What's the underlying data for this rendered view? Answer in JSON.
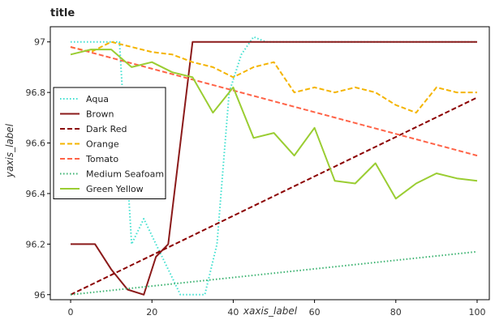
{
  "chart_data": {
    "type": "line",
    "title": "title",
    "xlabel": "xaxis_label",
    "ylabel": "yaxis_label",
    "xlim": [
      -5,
      103
    ],
    "ylim": [
      95.98,
      97.06
    ],
    "xticks": [
      0,
      20,
      40,
      60,
      80,
      100
    ],
    "xtick_labels": [
      "0",
      "20",
      "40",
      "60",
      "80",
      "100"
    ],
    "yticks": [
      96.0,
      96.2,
      96.4,
      96.6,
      96.8,
      97.0
    ],
    "ytick_labels": [
      "96",
      "96.2",
      "96.4",
      "96.6",
      "96.8",
      "97"
    ],
    "grid": false,
    "legend_position": "left",
    "series": [
      {
        "name": "Aqua",
        "color": "#40E0D0",
        "dash": "dot",
        "x": [
          0,
          4,
          6,
          9,
          12,
          15,
          18,
          21,
          24,
          27,
          30,
          33,
          36,
          39,
          42,
          45,
          48,
          51,
          54,
          57,
          60,
          63,
          66,
          69,
          72,
          75,
          78,
          81,
          84,
          87,
          90,
          93,
          96,
          100
        ],
        "y": [
          97.0,
          97.0,
          97.0,
          97.0,
          97.0,
          96.2,
          96.3,
          96.2,
          96.1,
          96.0,
          96.0,
          96.0,
          96.2,
          96.8,
          96.95,
          97.02,
          97.0,
          97.0,
          97.0,
          97.0,
          97.0,
          97.0,
          97.0,
          97.0,
          97.0,
          97.0,
          97.0,
          97.0,
          97.0,
          97.0,
          97.0,
          97.0,
          97.0,
          97.0
        ]
      },
      {
        "name": "Brown",
        "color": "#8B1A1A",
        "dash": "solid",
        "x": [
          0,
          6,
          10,
          14,
          18,
          21,
          24,
          27,
          30,
          33,
          36,
          39,
          40,
          45,
          50,
          55,
          60,
          70,
          80,
          90,
          100
        ],
        "y": [
          96.2,
          96.2,
          96.1,
          96.02,
          96.0,
          96.15,
          96.2,
          96.6,
          97.0,
          97.0,
          97.0,
          97.0,
          97.0,
          97.0,
          97.0,
          97.0,
          97.0,
          97.0,
          97.0,
          97.0,
          97.0
        ]
      },
      {
        "name": "Dark Red",
        "color": "#8B0000",
        "dash": "dash",
        "x": [
          0,
          100
        ],
        "y": [
          96.0,
          96.78
        ]
      },
      {
        "name": "Orange",
        "color": "#F4B400",
        "dash": "dash",
        "x": [
          0,
          5,
          10,
          15,
          20,
          25,
          30,
          35,
          40,
          45,
          50,
          55,
          60,
          65,
          70,
          75,
          80,
          85,
          90,
          95,
          100
        ],
        "y": [
          96.98,
          96.96,
          97.0,
          96.98,
          96.96,
          96.95,
          96.92,
          96.9,
          96.86,
          96.9,
          96.92,
          96.8,
          96.82,
          96.8,
          96.82,
          96.8,
          96.75,
          96.72,
          96.82,
          96.8,
          96.8
        ]
      },
      {
        "name": "Tomato",
        "color": "#FF6347",
        "dash": "dash",
        "x": [
          0,
          100
        ],
        "y": [
          96.98,
          96.55
        ]
      },
      {
        "name": "Medium Seafoam",
        "color": "#3CB371",
        "dash": "dot",
        "x": [
          0,
          100
        ],
        "y": [
          96.0,
          96.17
        ]
      },
      {
        "name": "Green Yellow",
        "color": "#9ACD32",
        "dash": "solid",
        "x": [
          0,
          5,
          10,
          15,
          20,
          25,
          30,
          35,
          40,
          45,
          50,
          55,
          60,
          65,
          70,
          75,
          80,
          85,
          90,
          95,
          100
        ],
        "y": [
          96.95,
          96.97,
          96.97,
          96.9,
          96.92,
          96.88,
          96.86,
          96.72,
          96.82,
          96.62,
          96.64,
          96.55,
          96.66,
          96.45,
          96.44,
          96.52,
          96.38,
          96.44,
          96.48,
          96.46,
          96.45
        ]
      }
    ]
  }
}
